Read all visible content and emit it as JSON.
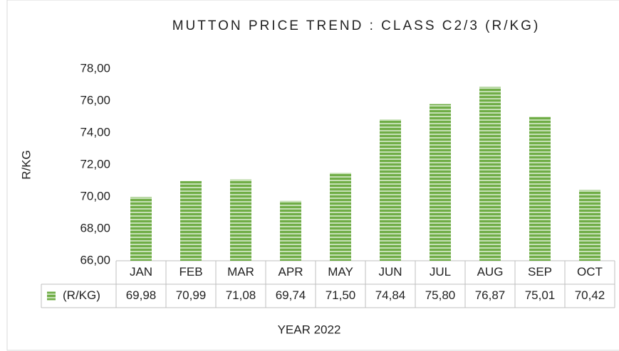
{
  "chart_data": {
    "type": "bar",
    "title": "MUTTON  PRICE TREND : CLASS C2/3 (R/KG)",
    "x_label": "YEAR 2022",
    "y_label": "R/KG",
    "categories": [
      "JAN",
      "FEB",
      "MAR",
      "APR",
      "MAY",
      "JUN",
      "JUL",
      "AUG",
      "SEP",
      "OCT"
    ],
    "series": [
      {
        "name": "(R/KG)",
        "color": "#70ad47",
        "values": [
          69.98,
          70.99,
          71.08,
          69.74,
          71.5,
          74.84,
          75.8,
          76.87,
          75.01,
          70.42
        ],
        "value_labels": [
          "69,98",
          "70,99",
          "71,08",
          "69,74",
          "71,50",
          "74,84",
          "75,80",
          "76,87",
          "75,01",
          "70,42"
        ]
      }
    ],
    "ylim": [
      66,
      78
    ],
    "yticks": [
      {
        "value": 66,
        "label": "66,00"
      },
      {
        "value": 68,
        "label": "68,00"
      },
      {
        "value": 70,
        "label": "70,00"
      },
      {
        "value": 72,
        "label": "72,00"
      },
      {
        "value": 74,
        "label": "74,00"
      },
      {
        "value": 76,
        "label": "76,00"
      },
      {
        "value": 78,
        "label": "78,00"
      }
    ]
  }
}
